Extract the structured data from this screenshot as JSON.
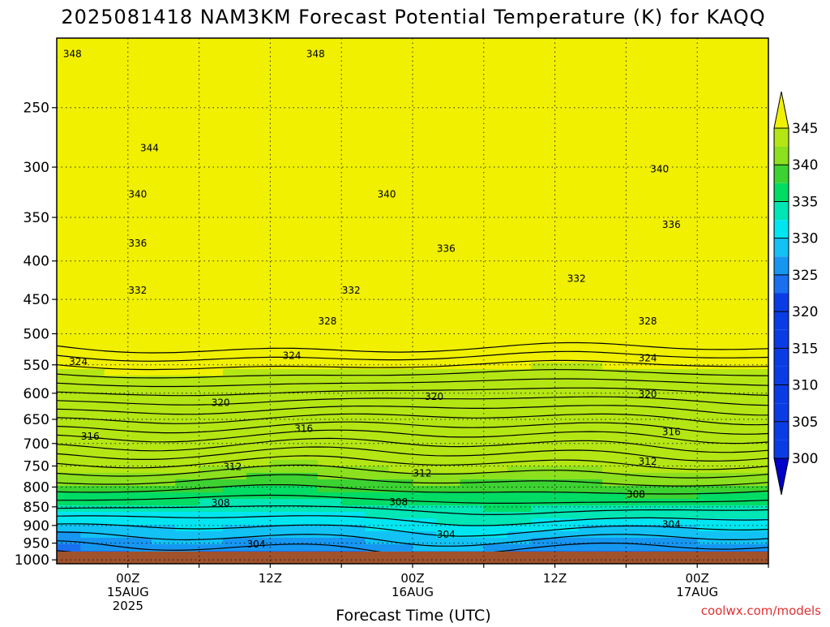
{
  "chart_data": {
    "type": "heatmap",
    "title": "2025081418 NAM3KM Forecast Potential Temperature (K) for KAQQ",
    "xlabel": "Forecast Time (UTC)",
    "ylabel": "",
    "credit": "coolwx.com/models",
    "y_scale": "log",
    "y_inverted": true,
    "ylim": [
      1012,
      202
    ],
    "y_ticks": [
      250,
      300,
      350,
      400,
      450,
      500,
      550,
      600,
      650,
      700,
      750,
      800,
      850,
      900,
      950,
      1000
    ],
    "x_start": "2025-08-14 18Z",
    "x_end": "2025-08-17 06Z",
    "x_ticks": [
      {
        "hour": 6,
        "lines": [
          "00Z",
          "15AUG",
          "2025"
        ]
      },
      {
        "hour": 18,
        "lines": [
          "12Z"
        ]
      },
      {
        "hour": 30,
        "lines": [
          "00Z",
          "16AUG"
        ]
      },
      {
        "hour": 42,
        "lines": [
          "12Z"
        ]
      },
      {
        "hour": 54,
        "lines": [
          "00Z",
          "17AUG"
        ]
      }
    ],
    "grid": true,
    "colorbar": {
      "levels": [
        300,
        305,
        310,
        315,
        320,
        325,
        330,
        335,
        340,
        345
      ],
      "colors": [
        "#0000c8",
        "#0a3ce6",
        "#1a6ef0",
        "#1696f0",
        "#12c2f4",
        "#00e6f0",
        "#00e6b4",
        "#00dc64",
        "#3cd232",
        "#8ce01e",
        "#b4e614",
        "#f0f000"
      ],
      "placement": "right",
      "extend": "both"
    },
    "contour_labels": [
      {
        "value": 348,
        "pressure": 212,
        "hour": 0.5
      },
      {
        "value": 348,
        "pressure": 212,
        "hour": 21
      },
      {
        "value": 344,
        "pressure": 283,
        "hour": 7
      },
      {
        "value": 340,
        "pressure": 302,
        "hour": 50
      },
      {
        "value": 340,
        "pressure": 326,
        "hour": 6
      },
      {
        "value": 340,
        "pressure": 326,
        "hour": 27
      },
      {
        "value": 336,
        "pressure": 358,
        "hour": 51
      },
      {
        "value": 336,
        "pressure": 379,
        "hour": 6
      },
      {
        "value": 336,
        "pressure": 385,
        "hour": 32
      },
      {
        "value": 332,
        "pressure": 422,
        "hour": 43
      },
      {
        "value": 332,
        "pressure": 438,
        "hour": 6
      },
      {
        "value": 332,
        "pressure": 438,
        "hour": 24
      },
      {
        "value": 328,
        "pressure": 481,
        "hour": 22
      },
      {
        "value": 328,
        "pressure": 481,
        "hour": 49
      },
      {
        "value": 324,
        "pressure": 535,
        "hour": 19
      },
      {
        "value": 324,
        "pressure": 539,
        "hour": 49
      },
      {
        "value": 324,
        "pressure": 545,
        "hour": 1
      },
      {
        "value": 320,
        "pressure": 606,
        "hour": 31
      },
      {
        "value": 320,
        "pressure": 602,
        "hour": 49
      },
      {
        "value": 320,
        "pressure": 618,
        "hour": 13
      },
      {
        "value": 316,
        "pressure": 669,
        "hour": 20
      },
      {
        "value": 316,
        "pressure": 676,
        "hour": 51
      },
      {
        "value": 316,
        "pressure": 685,
        "hour": 2
      },
      {
        "value": 312,
        "pressure": 740,
        "hour": 49
      },
      {
        "value": 312,
        "pressure": 752,
        "hour": 14
      },
      {
        "value": 312,
        "pressure": 767,
        "hour": 30
      },
      {
        "value": 308,
        "pressure": 818,
        "hour": 48
      },
      {
        "value": 308,
        "pressure": 838,
        "hour": 28
      },
      {
        "value": 308,
        "pressure": 840,
        "hour": 13
      },
      {
        "value": 304,
        "pressure": 897,
        "hour": 51
      },
      {
        "value": 304,
        "pressure": 925,
        "hour": 32
      },
      {
        "value": 304,
        "pressure": 953,
        "hour": 16
      }
    ]
  }
}
